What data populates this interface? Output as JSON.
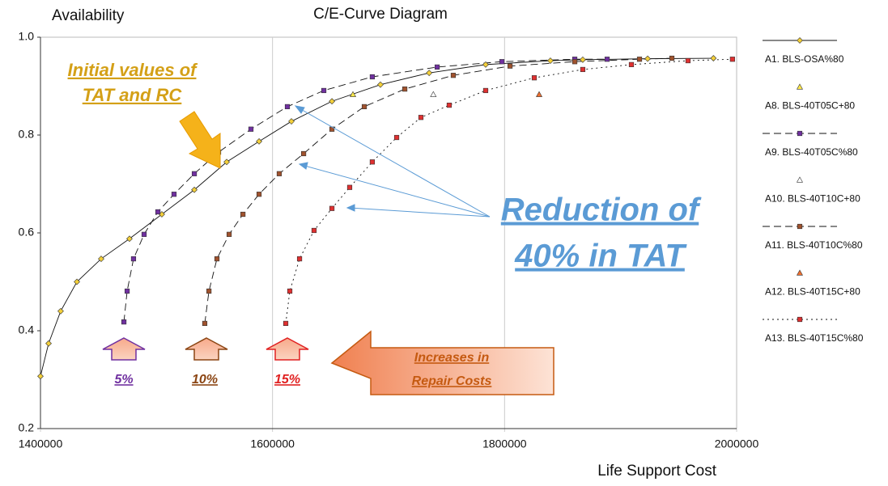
{
  "chart_data": {
    "type": "scatter",
    "title": "C/E-Curve Diagram",
    "y_label": "Availability",
    "x_label": "Life Support Cost",
    "xlim": [
      1400000,
      2000000
    ],
    "xticks": [
      1400000,
      1600000,
      1800000,
      2000000
    ],
    "ylim": [
      0.2,
      1
    ],
    "yticks": [
      0.2,
      0.4,
      0.6,
      0.8,
      {
        "value": 1,
        "label": "1.0"
      }
    ],
    "grid": "x",
    "legend": "right",
    "series": [
      {
        "name": "A1. BLS-OSA%80",
        "color": "#f3cf3a",
        "marker": "diamond",
        "line": "solid",
        "x": [
          1400000,
          1407000,
          1417400,
          1431400,
          1452300,
          1476700,
          1504600,
          1532600,
          1560500,
          1588400,
          1616300,
          1651200,
          1693000,
          1735000,
          1783700,
          1839500,
          1867400,
          1923300,
          1980000
        ],
        "values": [
          0.307,
          0.374,
          0.44,
          0.5,
          0.547,
          0.588,
          0.638,
          0.688,
          0.745,
          0.787,
          0.828,
          0.869,
          0.903,
          0.927,
          0.944,
          0.952,
          0.954,
          0.956,
          0.957
        ]
      },
      {
        "name": "A8. BLS-40T05C+80",
        "color": "#ffe94a",
        "marker": "triangle",
        "line": "none",
        "x": [
          1669300
        ],
        "values": [
          0.883
        ]
      },
      {
        "name": "A9. BLS-40T05C%80",
        "color": "#7030a0",
        "marker": "square",
        "line": "dash",
        "x": [
          1471900,
          1474700,
          1480200,
          1489300,
          1501200,
          1515100,
          1532600,
          1553500,
          1581400,
          1612800,
          1644200,
          1686000,
          1741900,
          1797700,
          1860500,
          1888400
        ],
        "values": [
          0.418,
          0.481,
          0.547,
          0.597,
          0.643,
          0.679,
          0.721,
          0.765,
          0.812,
          0.858,
          0.891,
          0.919,
          0.939,
          0.95,
          0.955,
          0.955
        ]
      },
      {
        "name": "A10. BLS-40T10C+80",
        "color": "#ffffff",
        "marker": "triangle",
        "line": "none",
        "x": [
          1738600
        ],
        "values": [
          0.883
        ]
      },
      {
        "name": "A11. BLS-40T10C%80",
        "color": "#a0522d",
        "marker": "square",
        "line": "dash",
        "x": [
          1541600,
          1545200,
          1552100,
          1562600,
          1574500,
          1588400,
          1605800,
          1626800,
          1651200,
          1679100,
          1714000,
          1755800,
          1804700,
          1860500,
          1916300,
          1944200
        ],
        "values": [
          0.415,
          0.481,
          0.547,
          0.597,
          0.638,
          0.679,
          0.721,
          0.762,
          0.812,
          0.858,
          0.894,
          0.922,
          0.941,
          0.95,
          0.955,
          0.957
        ]
      },
      {
        "name": "A12. BLS-40T15C+80",
        "color": "#f07030",
        "marker": "triangle",
        "line": "none",
        "x": [
          1829800
        ],
        "values": [
          0.883
        ]
      },
      {
        "name": "A13. BLS-40T15C%80",
        "color": "#e03030",
        "marker": "square",
        "line": "dot",
        "x": [
          1611400,
          1614900,
          1623300,
          1635800,
          1651200,
          1666500,
          1686000,
          1707000,
          1727900,
          1752300,
          1783700,
          1825600,
          1867400,
          1909300,
          1958100,
          1996400
        ],
        "values": [
          0.415,
          0.481,
          0.547,
          0.605,
          0.65,
          0.693,
          0.745,
          0.795,
          0.836,
          0.861,
          0.891,
          0.917,
          0.934,
          0.944,
          0.952,
          0.955
        ]
      }
    ],
    "annotations": [
      {
        "lines": [
          "Initial values of",
          "TAT and RC"
        ],
        "color": "#d4a017"
      },
      {
        "lines": [
          "Reduction of",
          "40% in TAT"
        ],
        "color": "#5b9bd5"
      },
      {
        "lines": [
          "Increases in",
          "Repair Costs"
        ],
        "color": "#c55a11"
      },
      {
        "lines": [
          "5%"
        ],
        "color": "#7030a0"
      },
      {
        "lines": [
          "10%"
        ],
        "color": "#8b4513"
      },
      {
        "lines": [
          "15%"
        ],
        "color": "#e02020"
      }
    ]
  }
}
